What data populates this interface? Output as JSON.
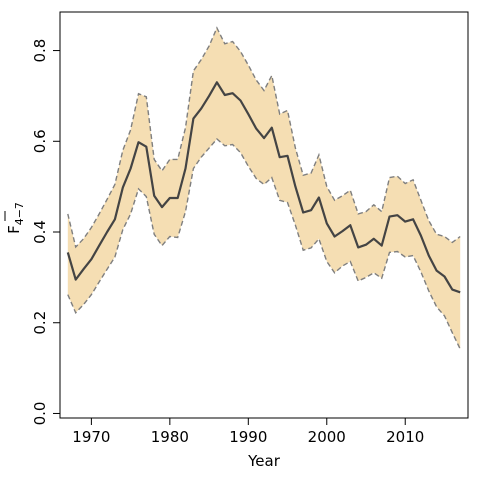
{
  "chart_data": {
    "type": "line",
    "xlabel": "Year",
    "ylabel": {
      "main": "F",
      "subscript": "4−7"
    },
    "xlim": [
      1966,
      2018
    ],
    "ylim": [
      -0.01,
      0.885
    ],
    "x_ticks": [
      1970,
      1980,
      1990,
      2000,
      2010
    ],
    "x_tick_labels": [
      "1970",
      "1980",
      "1990",
      "2000",
      "2010"
    ],
    "y_ticks": [
      0.0,
      0.2,
      0.4,
      0.6,
      0.8
    ],
    "y_tick_labels": [
      "0.0",
      "0.2",
      "0.4",
      "0.6",
      "0.8"
    ],
    "grid": false,
    "colors": {
      "band": "#f5deb3",
      "band_edge": "#7f7f7f",
      "line": "#444444"
    },
    "x": [
      1967,
      1968,
      1969,
      1970,
      1971,
      1972,
      1973,
      1974,
      1975,
      1976,
      1977,
      1978,
      1979,
      1980,
      1981,
      1982,
      1983,
      1984,
      1985,
      1986,
      1987,
      1988,
      1989,
      1990,
      1991,
      1992,
      1993,
      1994,
      1995,
      1996,
      1997,
      1998,
      1999,
      2000,
      2001,
      2002,
      2003,
      2004,
      2005,
      2006,
      2007,
      2008,
      2009,
      2010,
      2011,
      2012,
      2013,
      2014,
      2015,
      2016,
      2017
    ],
    "series": [
      {
        "role": "estimate",
        "values": [
          0.355,
          0.295,
          0.318,
          0.34,
          0.37,
          0.4,
          0.428,
          0.498,
          0.54,
          0.598,
          0.588,
          0.48,
          0.455,
          0.475,
          0.475,
          0.54,
          0.65,
          0.672,
          0.7,
          0.73,
          0.702,
          0.706,
          0.69,
          0.66,
          0.628,
          0.607,
          0.63,
          0.565,
          0.568,
          0.5,
          0.443,
          0.448,
          0.476,
          0.419,
          0.39,
          0.402,
          0.415,
          0.366,
          0.372,
          0.385,
          0.37,
          0.434,
          0.437,
          0.423,
          0.428,
          0.392,
          0.348,
          0.315,
          0.302,
          0.273,
          0.267
        ]
      },
      {
        "role": "lower",
        "values": [
          0.262,
          0.222,
          0.24,
          0.262,
          0.29,
          0.318,
          0.345,
          0.405,
          0.44,
          0.495,
          0.478,
          0.395,
          0.37,
          0.39,
          0.388,
          0.445,
          0.54,
          0.565,
          0.585,
          0.605,
          0.59,
          0.593,
          0.575,
          0.545,
          0.518,
          0.505,
          0.52,
          0.47,
          0.465,
          0.415,
          0.36,
          0.365,
          0.385,
          0.335,
          0.31,
          0.325,
          0.335,
          0.292,
          0.3,
          0.31,
          0.298,
          0.355,
          0.357,
          0.345,
          0.348,
          0.312,
          0.27,
          0.235,
          0.215,
          0.178,
          0.142
        ]
      },
      {
        "role": "upper",
        "values": [
          0.44,
          0.367,
          0.385,
          0.41,
          0.44,
          0.472,
          0.505,
          0.58,
          0.625,
          0.705,
          0.698,
          0.56,
          0.535,
          0.56,
          0.56,
          0.63,
          0.755,
          0.78,
          0.81,
          0.85,
          0.815,
          0.82,
          0.798,
          0.768,
          0.735,
          0.712,
          0.745,
          0.66,
          0.668,
          0.585,
          0.525,
          0.53,
          0.57,
          0.5,
          0.47,
          0.48,
          0.492,
          0.44,
          0.445,
          0.46,
          0.445,
          0.52,
          0.523,
          0.507,
          0.515,
          0.47,
          0.425,
          0.395,
          0.39,
          0.377,
          0.39
        ]
      }
    ]
  }
}
